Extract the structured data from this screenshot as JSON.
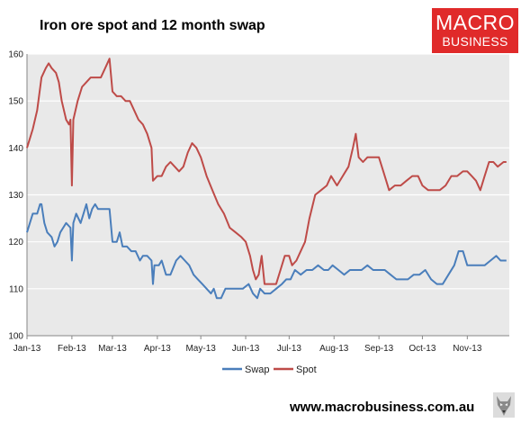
{
  "header": {
    "title": "Iron ore spot and 12 month swap",
    "logo_top": "MACRO",
    "logo_bottom": "BUSINESS"
  },
  "footer": {
    "url": "www.macrobusiness.com.au",
    "icon": "wolf-icon"
  },
  "colors": {
    "swap": "#4a7ebb",
    "spot": "#be4b48",
    "plot_background": "#e9e9e9",
    "gridline": "#ffffff",
    "logo": "#e02a2a"
  },
  "chart_data": {
    "type": "line",
    "title": "Iron ore spot and 12 month swap",
    "xlabel": "",
    "ylabel": "",
    "ylim": [
      100,
      160
    ],
    "yticks": [
      100,
      110,
      120,
      130,
      140,
      150,
      160
    ],
    "x_tick_labels": [
      "Jan-13",
      "Feb-13",
      "Mar-13",
      "Apr-13",
      "May-13",
      "Jun-13",
      "Jul-13",
      "Aug-13",
      "Sep-13",
      "Oct-13",
      "Nov-13"
    ],
    "xlim": [
      "2013-01-01",
      "2013-11-30"
    ],
    "grid": true,
    "legend": "bottom",
    "series": [
      {
        "name": "Swap",
        "points": [
          [
            "2013-01-01",
            122
          ],
          [
            "2013-01-03",
            124
          ],
          [
            "2013-01-05",
            126
          ],
          [
            "2013-01-08",
            126
          ],
          [
            "2013-01-10",
            128
          ],
          [
            "2013-01-11",
            128
          ],
          [
            "2013-01-13",
            124
          ],
          [
            "2013-01-15",
            122
          ],
          [
            "2013-01-18",
            121
          ],
          [
            "2013-01-20",
            119
          ],
          [
            "2013-01-22",
            120
          ],
          [
            "2013-01-24",
            122
          ],
          [
            "2013-01-28",
            124
          ],
          [
            "2013-01-31",
            123
          ],
          [
            "2013-02-01",
            116
          ],
          [
            "2013-02-02",
            124
          ],
          [
            "2013-02-04",
            126
          ],
          [
            "2013-02-07",
            124
          ],
          [
            "2013-02-09",
            126
          ],
          [
            "2013-02-11",
            128
          ],
          [
            "2013-02-13",
            125
          ],
          [
            "2013-02-15",
            127
          ],
          [
            "2013-02-17",
            128
          ],
          [
            "2013-02-19",
            127
          ],
          [
            "2013-02-22",
            127
          ],
          [
            "2013-02-25",
            127
          ],
          [
            "2013-02-27",
            127
          ],
          [
            "2013-03-01",
            120
          ],
          [
            "2013-03-04",
            120
          ],
          [
            "2013-03-06",
            122
          ],
          [
            "2013-03-08",
            119
          ],
          [
            "2013-03-11",
            119
          ],
          [
            "2013-03-14",
            118
          ],
          [
            "2013-03-17",
            118
          ],
          [
            "2013-03-20",
            116
          ],
          [
            "2013-03-22",
            117
          ],
          [
            "2013-03-25",
            117
          ],
          [
            "2013-03-28",
            116
          ],
          [
            "2013-03-29",
            111
          ],
          [
            "2013-03-30",
            115
          ],
          [
            "2013-04-02",
            115
          ],
          [
            "2013-04-04",
            116
          ],
          [
            "2013-04-07",
            113
          ],
          [
            "2013-04-10",
            113
          ],
          [
            "2013-04-14",
            116
          ],
          [
            "2013-04-17",
            117
          ],
          [
            "2013-04-20",
            116
          ],
          [
            "2013-04-23",
            115
          ],
          [
            "2013-04-26",
            113
          ],
          [
            "2013-04-29",
            112
          ],
          [
            "2013-05-02",
            111
          ],
          [
            "2013-05-05",
            110
          ],
          [
            "2013-05-08",
            109
          ],
          [
            "2013-05-10",
            110
          ],
          [
            "2013-05-12",
            108
          ],
          [
            "2013-05-15",
            108
          ],
          [
            "2013-05-18",
            110
          ],
          [
            "2013-05-22",
            110
          ],
          [
            "2013-05-26",
            110
          ],
          [
            "2013-05-30",
            110
          ],
          [
            "2013-06-03",
            111
          ],
          [
            "2013-06-06",
            109
          ],
          [
            "2013-06-09",
            108
          ],
          [
            "2013-06-11",
            110
          ],
          [
            "2013-06-14",
            109
          ],
          [
            "2013-06-18",
            109
          ],
          [
            "2013-06-22",
            110
          ],
          [
            "2013-06-26",
            111
          ],
          [
            "2013-06-29",
            112
          ],
          [
            "2013-07-02",
            112
          ],
          [
            "2013-07-05",
            114
          ],
          [
            "2013-07-09",
            113
          ],
          [
            "2013-07-13",
            114
          ],
          [
            "2013-07-17",
            114
          ],
          [
            "2013-07-21",
            115
          ],
          [
            "2013-07-25",
            114
          ],
          [
            "2013-07-28",
            114
          ],
          [
            "2013-07-31",
            115
          ],
          [
            "2013-08-04",
            114
          ],
          [
            "2013-08-08",
            113
          ],
          [
            "2013-08-12",
            114
          ],
          [
            "2013-08-16",
            114
          ],
          [
            "2013-08-20",
            114
          ],
          [
            "2013-08-24",
            115
          ],
          [
            "2013-08-28",
            114
          ],
          [
            "2013-09-01",
            114
          ],
          [
            "2013-09-05",
            114
          ],
          [
            "2013-09-09",
            113
          ],
          [
            "2013-09-13",
            112
          ],
          [
            "2013-09-17",
            112
          ],
          [
            "2013-09-21",
            112
          ],
          [
            "2013-09-25",
            113
          ],
          [
            "2013-09-29",
            113
          ],
          [
            "2013-10-03",
            114
          ],
          [
            "2013-10-07",
            112
          ],
          [
            "2013-10-11",
            111
          ],
          [
            "2013-10-15",
            111
          ],
          [
            "2013-10-19",
            113
          ],
          [
            "2013-10-23",
            115
          ],
          [
            "2013-10-26",
            118
          ],
          [
            "2013-10-29",
            118
          ],
          [
            "2013-11-01",
            115
          ],
          [
            "2013-11-05",
            115
          ],
          [
            "2013-11-09",
            115
          ],
          [
            "2013-11-13",
            115
          ],
          [
            "2013-11-17",
            116
          ],
          [
            "2013-11-21",
            117
          ],
          [
            "2013-11-24",
            116
          ],
          [
            "2013-11-28",
            116
          ]
        ]
      },
      {
        "name": "Spot",
        "points": [
          [
            "2013-01-01",
            140
          ],
          [
            "2013-01-03",
            142
          ],
          [
            "2013-01-05",
            144
          ],
          [
            "2013-01-08",
            148
          ],
          [
            "2013-01-11",
            155
          ],
          [
            "2013-01-14",
            157
          ],
          [
            "2013-01-16",
            158
          ],
          [
            "2013-01-18",
            157
          ],
          [
            "2013-01-21",
            156
          ],
          [
            "2013-01-23",
            154
          ],
          [
            "2013-01-25",
            150
          ],
          [
            "2013-01-28",
            146
          ],
          [
            "2013-01-30",
            145
          ],
          [
            "2013-01-31",
            146
          ],
          [
            "2013-02-01",
            132
          ],
          [
            "2013-02-02",
            146
          ],
          [
            "2013-02-05",
            150
          ],
          [
            "2013-02-08",
            153
          ],
          [
            "2013-02-11",
            154
          ],
          [
            "2013-02-14",
            155
          ],
          [
            "2013-02-18",
            155
          ],
          [
            "2013-02-21",
            155
          ],
          [
            "2013-02-24",
            157
          ],
          [
            "2013-02-27",
            159
          ],
          [
            "2013-03-01",
            152
          ],
          [
            "2013-03-04",
            151
          ],
          [
            "2013-03-07",
            151
          ],
          [
            "2013-03-10",
            150
          ],
          [
            "2013-03-13",
            150
          ],
          [
            "2013-03-16",
            148
          ],
          [
            "2013-03-19",
            146
          ],
          [
            "2013-03-22",
            145
          ],
          [
            "2013-03-25",
            143
          ],
          [
            "2013-03-28",
            140
          ],
          [
            "2013-03-29",
            133
          ],
          [
            "2013-04-01",
            134
          ],
          [
            "2013-04-04",
            134
          ],
          [
            "2013-04-07",
            136
          ],
          [
            "2013-04-10",
            137
          ],
          [
            "2013-04-13",
            136
          ],
          [
            "2013-04-16",
            135
          ],
          [
            "2013-04-19",
            136
          ],
          [
            "2013-04-22",
            139
          ],
          [
            "2013-04-25",
            141
          ],
          [
            "2013-04-28",
            140
          ],
          [
            "2013-05-01",
            138
          ],
          [
            "2013-05-05",
            134
          ],
          [
            "2013-05-09",
            131
          ],
          [
            "2013-05-13",
            128
          ],
          [
            "2013-05-17",
            126
          ],
          [
            "2013-05-21",
            123
          ],
          [
            "2013-05-25",
            122
          ],
          [
            "2013-05-29",
            121
          ],
          [
            "2013-06-01",
            120
          ],
          [
            "2013-06-04",
            117
          ],
          [
            "2013-06-06",
            114
          ],
          [
            "2013-06-08",
            112
          ],
          [
            "2013-06-10",
            113
          ],
          [
            "2013-06-12",
            117
          ],
          [
            "2013-06-14",
            111
          ],
          [
            "2013-06-18",
            111
          ],
          [
            "2013-06-22",
            111
          ],
          [
            "2013-06-25",
            114
          ],
          [
            "2013-06-28",
            117
          ],
          [
            "2013-07-01",
            117
          ],
          [
            "2013-07-03",
            115
          ],
          [
            "2013-07-06",
            116
          ],
          [
            "2013-07-09",
            118
          ],
          [
            "2013-07-12",
            120
          ],
          [
            "2013-07-15",
            125
          ],
          [
            "2013-07-19",
            130
          ],
          [
            "2013-07-23",
            131
          ],
          [
            "2013-07-27",
            132
          ],
          [
            "2013-07-30",
            134
          ],
          [
            "2013-08-03",
            132
          ],
          [
            "2013-08-07",
            134
          ],
          [
            "2013-08-11",
            136
          ],
          [
            "2013-08-14",
            140
          ],
          [
            "2013-08-16",
            143
          ],
          [
            "2013-08-18",
            138
          ],
          [
            "2013-08-21",
            137
          ],
          [
            "2013-08-24",
            138
          ],
          [
            "2013-08-28",
            138
          ],
          [
            "2013-09-01",
            138
          ],
          [
            "2013-09-04",
            135
          ],
          [
            "2013-09-06",
            133
          ],
          [
            "2013-09-08",
            131
          ],
          [
            "2013-09-12",
            132
          ],
          [
            "2013-09-16",
            132
          ],
          [
            "2013-09-20",
            133
          ],
          [
            "2013-09-24",
            134
          ],
          [
            "2013-09-28",
            134
          ],
          [
            "2013-10-01",
            132
          ],
          [
            "2013-10-05",
            131
          ],
          [
            "2013-10-09",
            131
          ],
          [
            "2013-10-13",
            131
          ],
          [
            "2013-10-17",
            132
          ],
          [
            "2013-10-21",
            134
          ],
          [
            "2013-10-25",
            134
          ],
          [
            "2013-10-29",
            135
          ],
          [
            "2013-11-01",
            135
          ],
          [
            "2013-11-04",
            134
          ],
          [
            "2013-11-07",
            133
          ],
          [
            "2013-11-10",
            131
          ],
          [
            "2013-11-13",
            134
          ],
          [
            "2013-11-16",
            137
          ],
          [
            "2013-11-19",
            137
          ],
          [
            "2013-11-22",
            136
          ],
          [
            "2013-11-26",
            137
          ],
          [
            "2013-11-28",
            137
          ]
        ]
      }
    ]
  }
}
